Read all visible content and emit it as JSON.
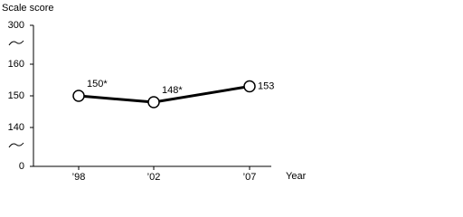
{
  "chart_data": {
    "type": "line",
    "y_label": "Scale score",
    "x_label": "Year",
    "categories": [
      "’98",
      "’02",
      "’07"
    ],
    "series": [
      {
        "name": null,
        "color": "#000000",
        "values": [
          150,
          148,
          153
        ],
        "value_labels": [
          "150*",
          "148*",
          "153"
        ]
      }
    ],
    "ylim": [
      0,
      300
    ],
    "yticks": [
      0,
      140,
      150,
      160,
      300
    ]
  }
}
